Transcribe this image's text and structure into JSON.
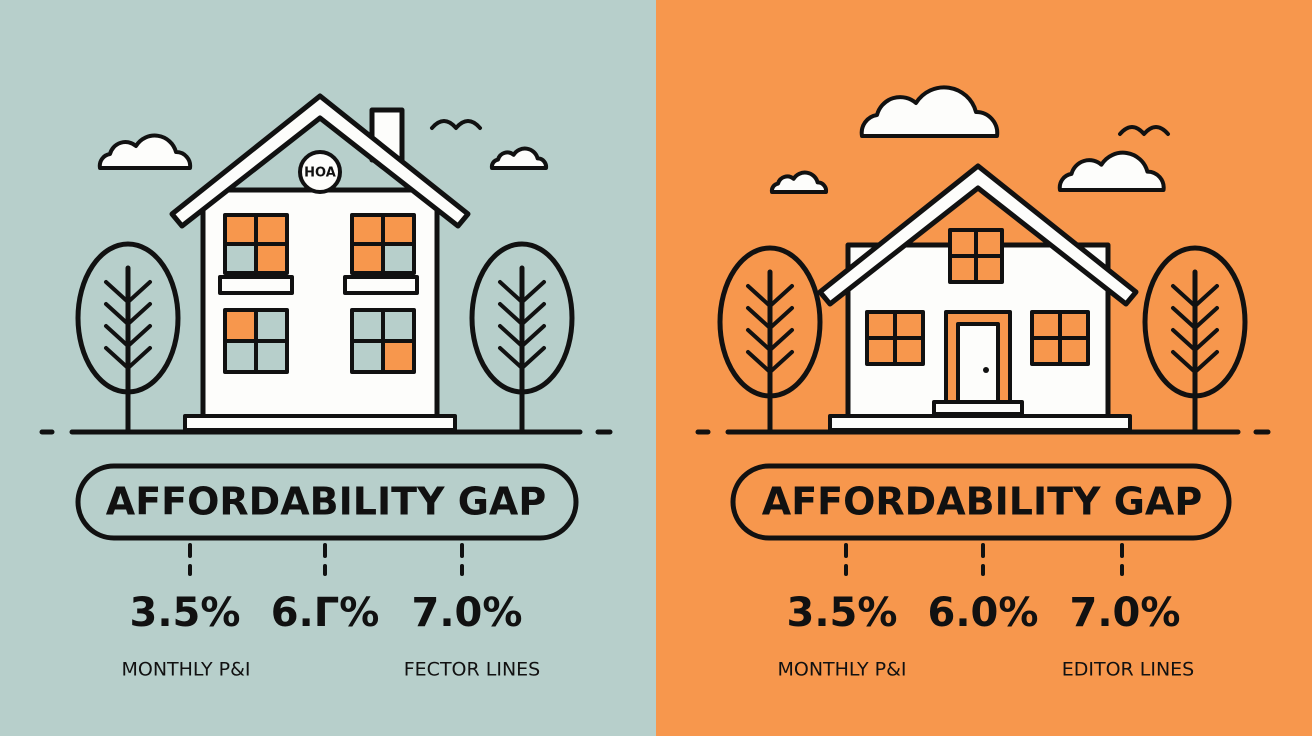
{
  "panels": [
    {
      "badge": "HOA",
      "banner": "AFFORDABILITY GAP",
      "rates": [
        "3.5%",
        "6.Γ%",
        "7.0%"
      ],
      "labels": [
        "MONTHLY P&I",
        "FECTOR LINES"
      ]
    },
    {
      "banner": "AFFORDABILITY GAP",
      "rates": [
        "3.5%",
        "6.0%",
        "7.0%"
      ],
      "labels": [
        "MONTHLY P&I",
        "EDITOR LINES"
      ]
    }
  ]
}
